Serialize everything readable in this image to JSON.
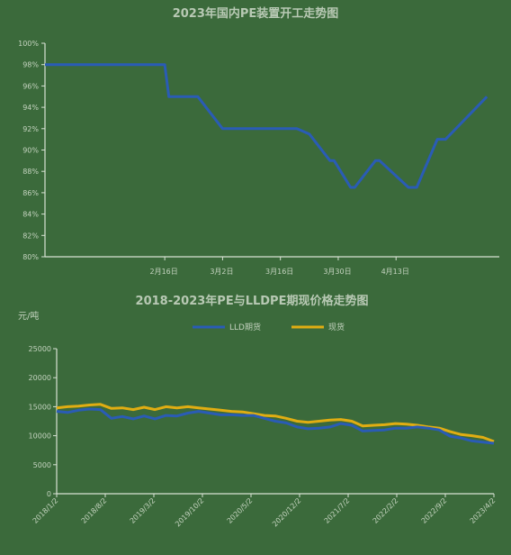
{
  "chart_data": [
    {
      "type": "line",
      "title": "2023年国内PE装置开工走势图",
      "x_tick_labels": [
        "2月16日",
        "3月2日",
        "3月16日",
        "3月30日",
        "4月13日"
      ],
      "y_tick_labels": [
        "80%",
        "82%",
        "84%",
        "86%",
        "88%",
        "90%",
        "92%",
        "94%",
        "96%",
        "98%",
        "100%"
      ],
      "ylim": [
        80,
        100
      ],
      "grid": false,
      "series": [
        {
          "color": "#2a5cb5",
          "x": [
            "2023-01-18",
            "2023-02-16",
            "2023-02-17",
            "2023-02-23",
            "2023-02-24",
            "2023-03-02",
            "2023-03-13",
            "2023-03-20",
            "2023-03-23",
            "2023-03-28",
            "2023-03-29",
            "2023-04-02",
            "2023-04-03",
            "2023-04-08",
            "2023-04-09",
            "2023-04-16",
            "2023-04-18",
            "2023-04-23",
            "2023-04-25",
            "2023-05-05"
          ],
          "values": [
            98.0,
            98.0,
            95.0,
            95.0,
            95.0,
            92.0,
            92.0,
            92.0,
            91.5,
            89.0,
            89.0,
            86.5,
            86.5,
            89.0,
            89.0,
            86.5,
            86.5,
            91.0,
            91.0,
            95.0
          ]
        }
      ]
    },
    {
      "type": "line",
      "title": "2018-2023年PE与LLDPE期现价格走势图",
      "unit": "元/吨",
      "x_tick_labels": [
        "2018/1/2",
        "2018/8/2",
        "2019/3/2",
        "2019/10/2",
        "2020/5/2",
        "2020/12/2",
        "2021/7/2",
        "2022/2/2",
        "2022/9/2",
        "2023/4/2"
      ],
      "y_tick_labels": [
        "0",
        "5000",
        "10000",
        "15000",
        "20000",
        "25000"
      ],
      "ylim": [
        0,
        25000
      ],
      "grid": false,
      "legend_position": "top",
      "series": [
        {
          "name": "LLD期货",
          "color": "#2a5cb5",
          "values": [
            14200,
            14000,
            14400,
            14600,
            14500,
            13000,
            13300,
            12900,
            13400,
            12900,
            13500,
            13400,
            13900,
            14200,
            13900,
            13600,
            13600,
            13500,
            13500,
            13000,
            12500,
            12200,
            11500,
            11200,
            11300,
            11500,
            12100,
            11800,
            10800,
            10900,
            11000,
            11300,
            11300,
            11500,
            11300,
            11000,
            9900,
            9600,
            9100,
            8900,
            8700
          ]
        },
        {
          "name": "现货",
          "color": "#e0ad12",
          "values": [
            14800,
            15000,
            15100,
            15300,
            15400,
            14700,
            14800,
            14500,
            14900,
            14500,
            15000,
            14800,
            15000,
            14800,
            14600,
            14400,
            14200,
            14100,
            13800,
            13500,
            13400,
            13000,
            12500,
            12300,
            12500,
            12700,
            12800,
            12500,
            11700,
            11800,
            11900,
            12100,
            12000,
            11800,
            11500,
            11300,
            10700,
            10200,
            10000,
            9700,
            9000
          ]
        }
      ]
    }
  ]
}
